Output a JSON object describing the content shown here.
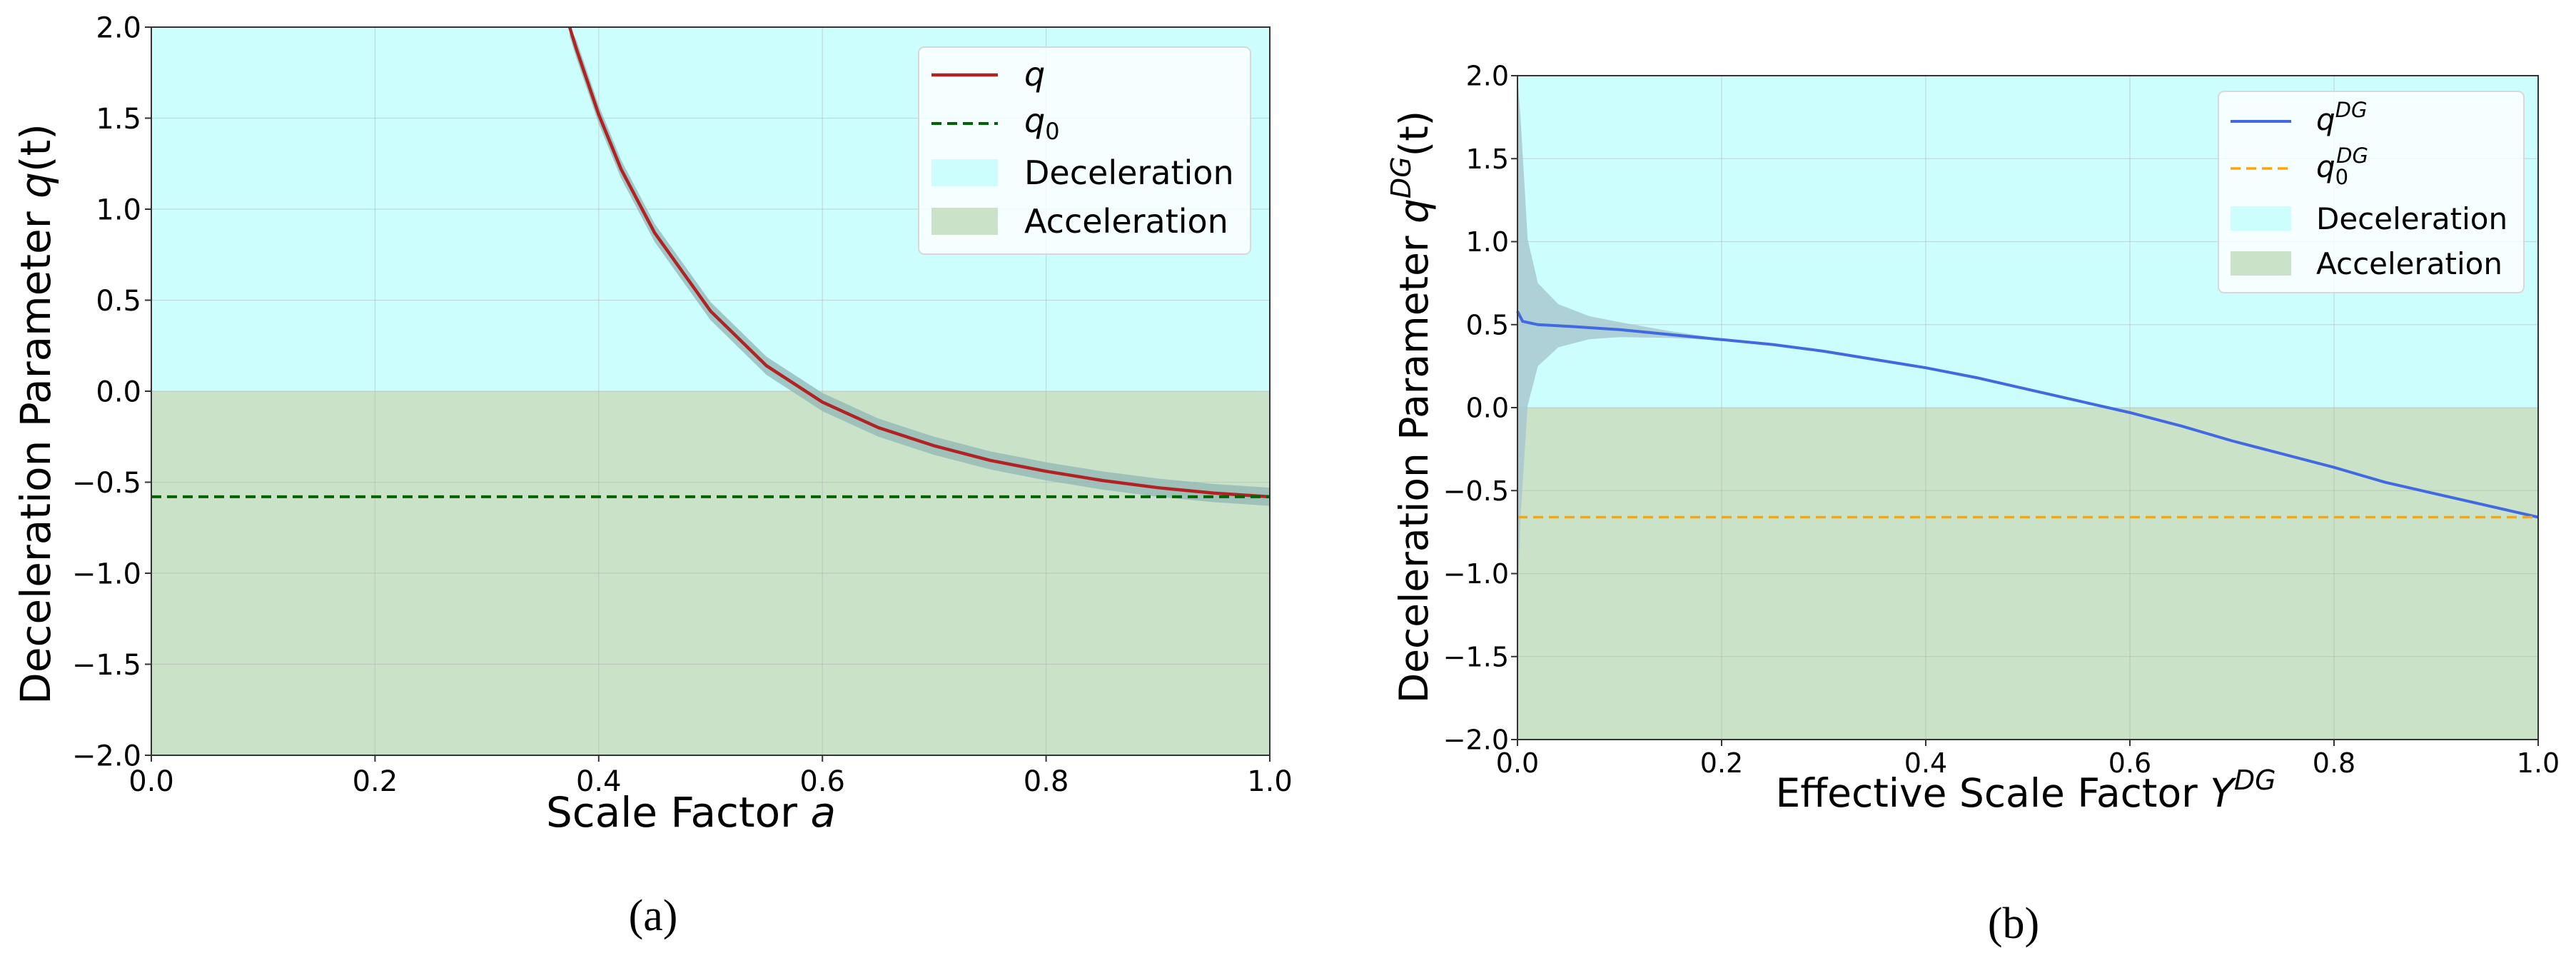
{
  "colors": {
    "deceleration": "#ccfefe",
    "acceleration": "#cae3c8",
    "grid": "#b0b0b0",
    "q_line": "#b22222",
    "q_band": "#8fb6b6",
    "q0_line": "#006400",
    "qdg_line": "#4169e1",
    "qdg_band": "#a8c8d0",
    "q0dg_line": "#ffa500"
  },
  "chart_data": [
    {
      "type": "line",
      "panel_label": "(a)",
      "xlabel_text": "Scale Factor ",
      "xlabel_var": "a",
      "ylabel_text": "Deceleration Parameter ",
      "ylabel_var": "q",
      "ylabel_arg": "(t)",
      "xlim": [
        0.0,
        1.0
      ],
      "ylim": [
        -2.0,
        2.0
      ],
      "xticks": [
        "0.0",
        "0.2",
        "0.4",
        "0.6",
        "0.8",
        "1.0"
      ],
      "yticks": [
        "−2.0",
        "−1.5",
        "−1.0",
        "−0.5",
        "0.0",
        "0.5",
        "1.0",
        "1.5",
        "2.0"
      ],
      "grid": true,
      "legend_position": "top-right",
      "legend": {
        "q": "q",
        "q0": "q",
        "q0_sub": "0",
        "deceleration": "Deceleration",
        "acceleration": "Acceleration"
      },
      "regions": [
        {
          "name": "Deceleration",
          "y_from": 0.0,
          "y_to": 2.0
        },
        {
          "name": "Acceleration",
          "y_from": -2.0,
          "y_to": 0.0
        }
      ],
      "q0_value": -0.58,
      "series_q": {
        "x": [
          0.374,
          0.38,
          0.4,
          0.42,
          0.45,
          0.5,
          0.55,
          0.6,
          0.65,
          0.7,
          0.75,
          0.8,
          0.85,
          0.9,
          0.95,
          1.0
        ],
        "y": [
          2.0,
          1.88,
          1.52,
          1.22,
          0.87,
          0.44,
          0.14,
          -0.06,
          -0.2,
          -0.3,
          -0.38,
          -0.44,
          -0.49,
          -0.53,
          -0.56,
          -0.58
        ]
      },
      "band_halfwidth": 0.05
    },
    {
      "type": "line",
      "panel_label": "(b)",
      "xlabel_text": "Effective Scale Factor ",
      "xlabel_var": "Y",
      "xlabel_sup": "DG",
      "ylabel_text": "Deceleration Parameter ",
      "ylabel_var": "q",
      "ylabel_sup": "DG",
      "ylabel_arg": "(t)",
      "xlim": [
        0.0,
        1.0
      ],
      "ylim": [
        -2.0,
        2.0
      ],
      "xticks": [
        "0.0",
        "0.2",
        "0.4",
        "0.6",
        "0.8",
        "1.0"
      ],
      "yticks": [
        "−2.0",
        "−1.5",
        "−1.0",
        "−0.5",
        "0.0",
        "0.5",
        "1.0",
        "1.5",
        "2.0"
      ],
      "grid": true,
      "legend_position": "top-right",
      "legend": {
        "q": "q",
        "q_sup": "DG",
        "q0": "q",
        "q0_sub": "0",
        "q0_sup": "DG",
        "deceleration": "Deceleration",
        "acceleration": "Acceleration"
      },
      "regions": [
        {
          "name": "Deceleration",
          "y_from": 0.0,
          "y_to": 2.0
        },
        {
          "name": "Acceleration",
          "y_from": -2.0,
          "y_to": 0.0
        }
      ],
      "q0_value": -0.66,
      "series_q": {
        "x": [
          0.0,
          0.005,
          0.02,
          0.05,
          0.1,
          0.15,
          0.2,
          0.25,
          0.3,
          0.35,
          0.4,
          0.45,
          0.5,
          0.55,
          0.6,
          0.65,
          0.7,
          0.75,
          0.8,
          0.85,
          0.9,
          0.95,
          1.0
        ],
        "y": [
          0.58,
          0.52,
          0.5,
          0.49,
          0.47,
          0.44,
          0.41,
          0.38,
          0.34,
          0.29,
          0.24,
          0.18,
          0.11,
          0.04,
          -0.03,
          -0.11,
          -0.2,
          -0.28,
          -0.36,
          -0.45,
          -0.52,
          -0.59,
          -0.66
        ]
      },
      "band": {
        "x": [
          0.0,
          0.003,
          0.01,
          0.02,
          0.04,
          0.07,
          0.1,
          0.15,
          0.2
        ],
        "half": [
          1.8,
          1.2,
          0.5,
          0.25,
          0.13,
          0.07,
          0.045,
          0.02,
          0.005
        ]
      }
    }
  ]
}
